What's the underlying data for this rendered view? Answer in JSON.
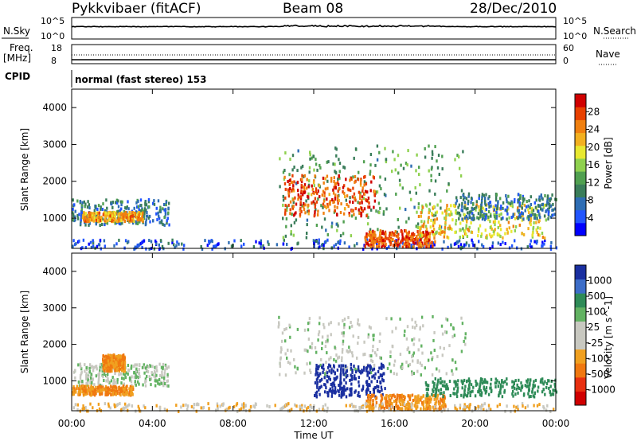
{
  "header": {
    "title": "Pykkvibaer (fitACF)",
    "beam": "Beam 08",
    "date": "28/Dec/2010"
  },
  "status_panels": {
    "nsky": {
      "label": "N.Sky",
      "ticks": [
        "10^5",
        "10^0"
      ]
    },
    "nsearch": {
      "label": "N.Search",
      "ticks": [
        "10^5",
        "10^0"
      ]
    },
    "freq": {
      "label_line1": "Freq.",
      "label_line2": "[MHz]",
      "ticks": [
        "18",
        "8"
      ]
    },
    "nave": {
      "label": "Nave",
      "ticks": [
        "60",
        "0"
      ]
    },
    "cpid": {
      "label": "CPID",
      "text": "normal (fast stereo) 153"
    }
  },
  "chart_data": [
    {
      "type": "heatmap",
      "name": "power",
      "ylabel": "Slant Range [km]",
      "ylim": [
        180,
        4500
      ],
      "yticks": [
        "1000",
        "2000",
        "3000",
        "4000"
      ],
      "xlim": [
        0,
        24
      ],
      "colorbar": {
        "label": "Power [dB]",
        "ticks": [
          "4",
          "8",
          "12",
          "16",
          "20",
          "24",
          "28"
        ],
        "colors": [
          "#0000ff",
          "#2255ff",
          "#2e6db4",
          "#3a7d5a",
          "#50a050",
          "#8fd14f",
          "#e8e830",
          "#f2b020",
          "#f08010",
          "#e84000",
          "#d00000"
        ]
      },
      "regions": [
        {
          "t0": 0.0,
          "t1": 4.8,
          "r0": 850,
          "r1": 1550,
          "level": 8
        },
        {
          "t0": 0.5,
          "t1": 3.5,
          "r0": 950,
          "r1": 1200,
          "level": 24
        },
        {
          "t0": 0.0,
          "t1": 24.0,
          "r0": 200,
          "r1": 450,
          "level": 4
        },
        {
          "t0": 10.2,
          "t1": 19.5,
          "r0": 500,
          "r1": 3000,
          "level": 12
        },
        {
          "t0": 10.5,
          "t1": 15.0,
          "r0": 1100,
          "r1": 2200,
          "level": 28
        },
        {
          "t0": 14.5,
          "t1": 18.0,
          "r0": 250,
          "r1": 700,
          "level": 28
        },
        {
          "t0": 17.0,
          "t1": 23.5,
          "r0": 500,
          "r1": 1400,
          "level": 20
        },
        {
          "t0": 19.0,
          "t1": 24.0,
          "r0": 1000,
          "r1": 1700,
          "level": 8
        }
      ]
    },
    {
      "type": "heatmap",
      "name": "velocity",
      "ylabel": "Slant Range [km]",
      "ylim": [
        180,
        4500
      ],
      "yticks": [
        "1000",
        "2000",
        "3000",
        "4000"
      ],
      "xlim": [
        0,
        24
      ],
      "colorbar": {
        "label": "Velocity [m s^-1]",
        "ticks": [
          "1000",
          "500",
          "100",
          "25",
          "-25",
          "-100",
          "-500",
          "-1000"
        ],
        "colors": [
          "#1a2fa0",
          "#3c6dc8",
          "#2e8b57",
          "#62b262",
          "#c8c8c0",
          "#c8c8c0",
          "#f0a020",
          "#f07810",
          "#e83010",
          "#d00000"
        ]
      },
      "regions": [
        {
          "t0": 0.0,
          "t1": 4.8,
          "r0": 900,
          "r1": 1500,
          "level": 0
        },
        {
          "t0": 0.0,
          "t1": 3.0,
          "r0": 650,
          "r1": 900,
          "level": -300
        },
        {
          "t0": 1.5,
          "t1": 2.6,
          "r0": 1300,
          "r1": 1750,
          "level": -300
        },
        {
          "t0": 10.2,
          "t1": 19.5,
          "r0": 1200,
          "r1": 2800,
          "level": 0
        },
        {
          "t0": 12.0,
          "t1": 15.5,
          "r0": 600,
          "r1": 1500,
          "level": 1000
        },
        {
          "t0": 14.5,
          "t1": 18.5,
          "r0": 250,
          "r1": 650,
          "level": -300
        },
        {
          "t0": 17.5,
          "t1": 24.0,
          "r0": 600,
          "r1": 1100,
          "level": 200
        },
        {
          "t0": 0.0,
          "t1": 24.0,
          "r0": 200,
          "r1": 420,
          "level": -60
        }
      ]
    }
  ],
  "xaxis": {
    "label": "Time UT",
    "ticks": [
      "00:00",
      "04:00",
      "08:00",
      "12:00",
      "16:00",
      "20:00",
      "00:00"
    ]
  }
}
